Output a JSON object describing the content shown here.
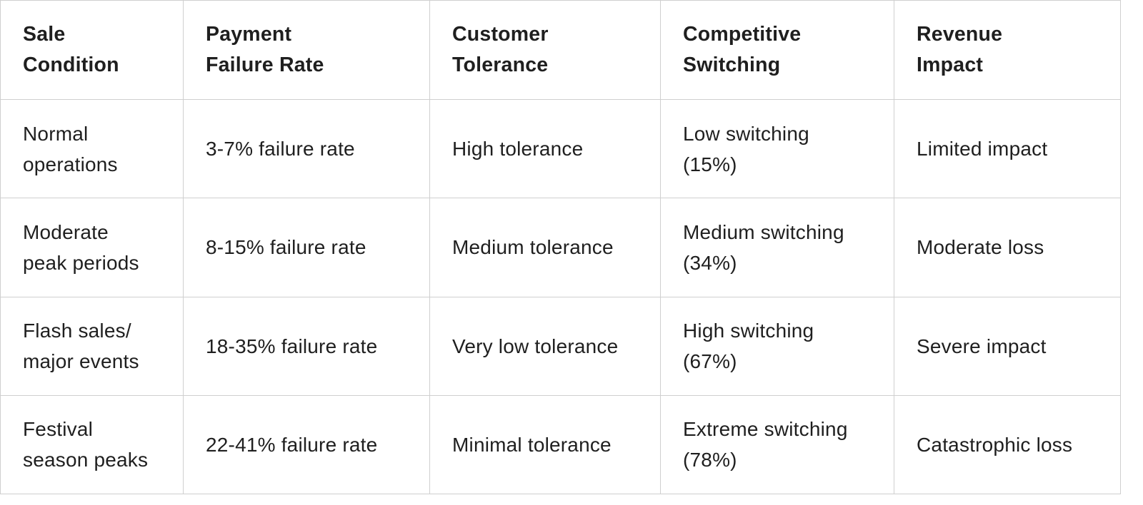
{
  "table": {
    "headers": [
      "Sale\nCondition",
      "Payment\nFailure Rate",
      "Customer\nTolerance",
      "Competitive\nSwitching",
      "Revenue\nImpact"
    ],
    "rows": [
      [
        "Normal\noperations",
        "3-7% failure rate",
        "High tolerance",
        "Low switching\n(15%)",
        "Limited impact"
      ],
      [
        "Moderate\npeak periods",
        "8-15% failure rate",
        "Medium tolerance",
        "Medium switching\n(34%)",
        "Moderate loss"
      ],
      [
        "Flash sales/\nmajor events",
        "18-35% failure rate",
        "Very low tolerance",
        "High switching\n(67%)",
        "Severe impact"
      ],
      [
        "Festival\nseason peaks",
        "22-41% failure rate",
        "Minimal tolerance",
        "Extreme switching\n(78%)",
        "Catastrophic loss"
      ]
    ]
  }
}
